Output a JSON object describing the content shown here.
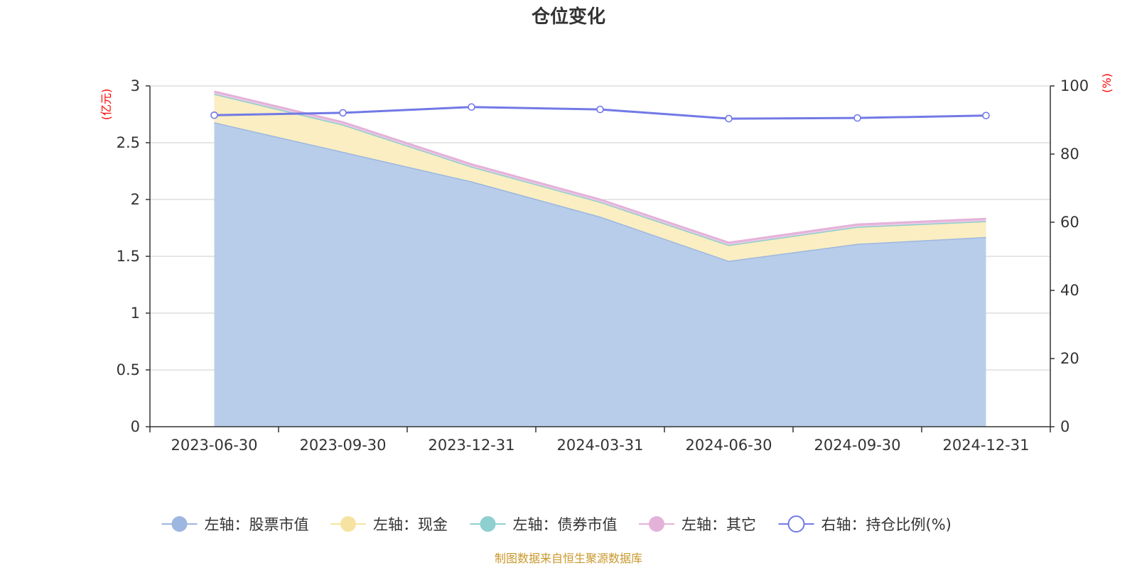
{
  "chart_data": {
    "type": "area",
    "title": "仓位变化",
    "categories": [
      "2023-06-30",
      "2023-09-30",
      "2023-12-31",
      "2024-03-31",
      "2024-06-30",
      "2024-09-30",
      "2024-12-31"
    ],
    "left_axis": {
      "name": "(亿元)",
      "range": [
        0,
        3
      ],
      "ticks": [
        "0",
        "0.5",
        "1",
        "1.5",
        "2",
        "2.5",
        "3"
      ]
    },
    "right_axis": {
      "name": "(%)",
      "range": [
        0,
        100
      ],
      "ticks": [
        "0",
        "20",
        "40",
        "60",
        "80",
        "100"
      ]
    },
    "series": [
      {
        "name": "左轴：股票市值",
        "axis": "left",
        "kind": "stacked-area",
        "color": "#9db7e0",
        "fill": "#b8cdea",
        "values": [
          2.68,
          2.42,
          2.16,
          1.85,
          1.46,
          1.61,
          1.67
        ]
      },
      {
        "name": "左轴：现金",
        "axis": "left",
        "kind": "stacked-area",
        "color": "#f7e3a1",
        "fill": "#faeec2",
        "values": [
          0.25,
          0.24,
          0.13,
          0.13,
          0.14,
          0.15,
          0.14
        ]
      },
      {
        "name": "左轴：债券市值",
        "axis": "left",
        "kind": "stacked-area",
        "color": "#8ecfd0",
        "fill": "#c6e8e8",
        "values": [
          0,
          0,
          0,
          0,
          0,
          0,
          0
        ]
      },
      {
        "name": "左轴：其它",
        "axis": "left",
        "kind": "stacked-area",
        "color": "#e4b2d9",
        "fill": "#eccbe4",
        "values": [
          0.02,
          0.02,
          0.02,
          0.02,
          0.02,
          0.02,
          0.02
        ]
      },
      {
        "name": "右轴：持仓比例(%)",
        "axis": "right",
        "kind": "line",
        "color": "#7279e6",
        "values": [
          91.4,
          92.1,
          93.8,
          93.1,
          90.4,
          90.6,
          91.3
        ]
      }
    ],
    "grid": true,
    "legend_position": "bottom"
  },
  "source": "制图数据来自恒生聚源数据库"
}
